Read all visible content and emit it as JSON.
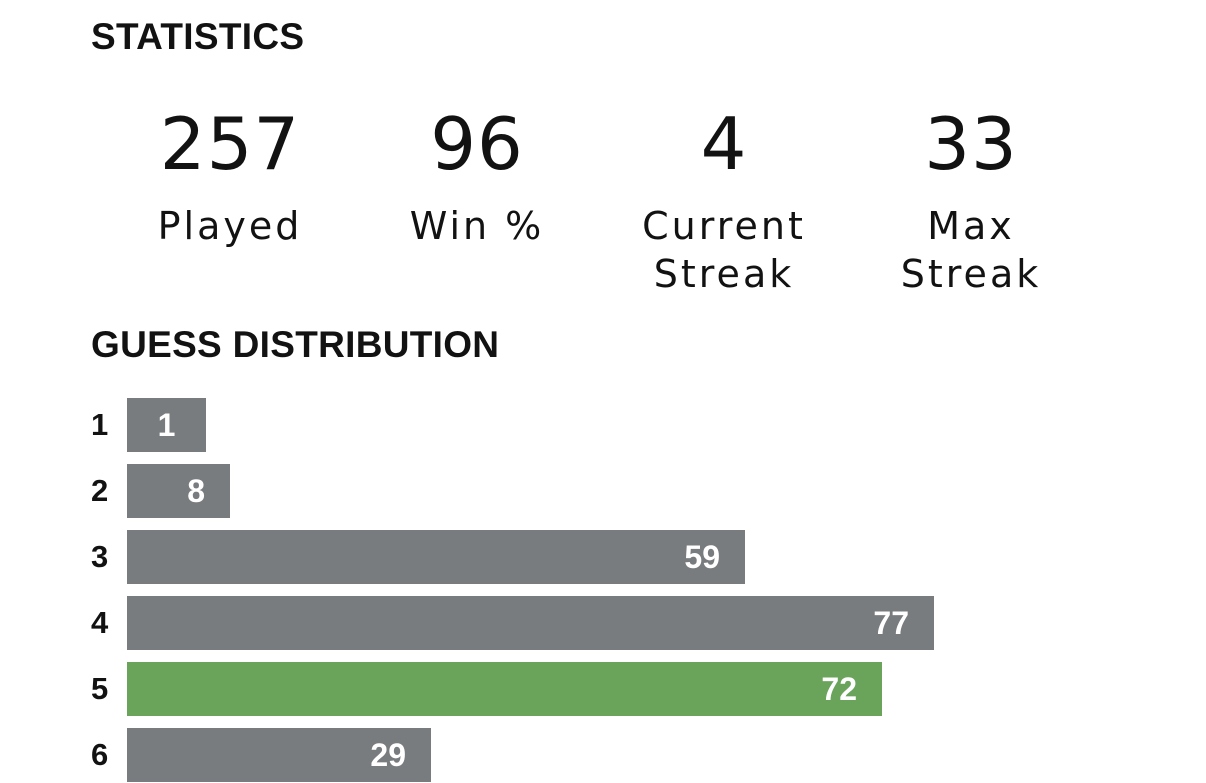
{
  "statistics": {
    "title": "STATISTICS",
    "items": [
      {
        "value": "257",
        "label": "Played"
      },
      {
        "value": "96",
        "label": "Win %"
      },
      {
        "value": "4",
        "label": "Current\nStreak"
      },
      {
        "value": "33",
        "label": "Max\nStreak"
      }
    ]
  },
  "distribution": {
    "title": "GUESS DISTRIBUTION",
    "highlight_row": 5,
    "colors": {
      "bar": "#787c7e",
      "highlight": "#6aa35a",
      "count_text": "#ffffff"
    },
    "rows": [
      {
        "guess": "1",
        "count": 1
      },
      {
        "guess": "2",
        "count": 8
      },
      {
        "guess": "3",
        "count": 59
      },
      {
        "guess": "4",
        "count": 77
      },
      {
        "guess": "5",
        "count": 72
      },
      {
        "guess": "6",
        "count": 29
      }
    ]
  }
}
